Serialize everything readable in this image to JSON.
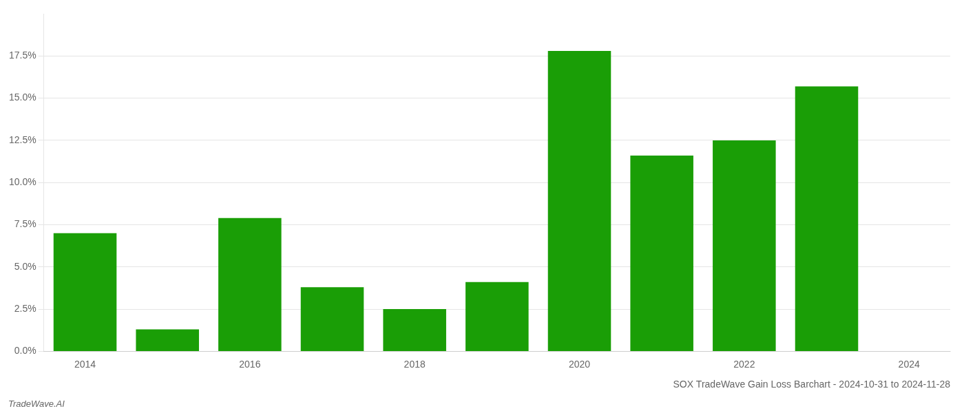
{
  "chart_data": {
    "type": "bar",
    "title": "SOX TradeWave Gain Loss Barchart - 2024-10-31 to 2024-11-28",
    "annotations": [
      "TradeWave.AI"
    ],
    "categories": [
      "2014",
      null,
      "2016",
      null,
      "2018",
      null,
      "2020",
      null,
      "2022",
      null,
      "2024"
    ],
    "values": [
      0.07,
      0.013,
      0.079,
      0.038,
      0.025,
      0.041,
      0.178,
      0.116,
      0.125,
      0.157,
      null
    ],
    "color": "#1a9e06",
    "ylim": [
      0,
      0.2
    ],
    "yticks": [
      {
        "value": 0.0,
        "label": "0.0%"
      },
      {
        "value": 0.025,
        "label": "2.5%"
      },
      {
        "value": 0.05,
        "label": "5.0%"
      },
      {
        "value": 0.075,
        "label": "7.5%"
      },
      {
        "value": 0.1,
        "label": "10.0%"
      },
      {
        "value": 0.125,
        "label": "12.5%"
      },
      {
        "value": 0.15,
        "label": "15.0%"
      },
      {
        "value": 0.175,
        "label": "17.5%"
      }
    ],
    "grid": true
  }
}
